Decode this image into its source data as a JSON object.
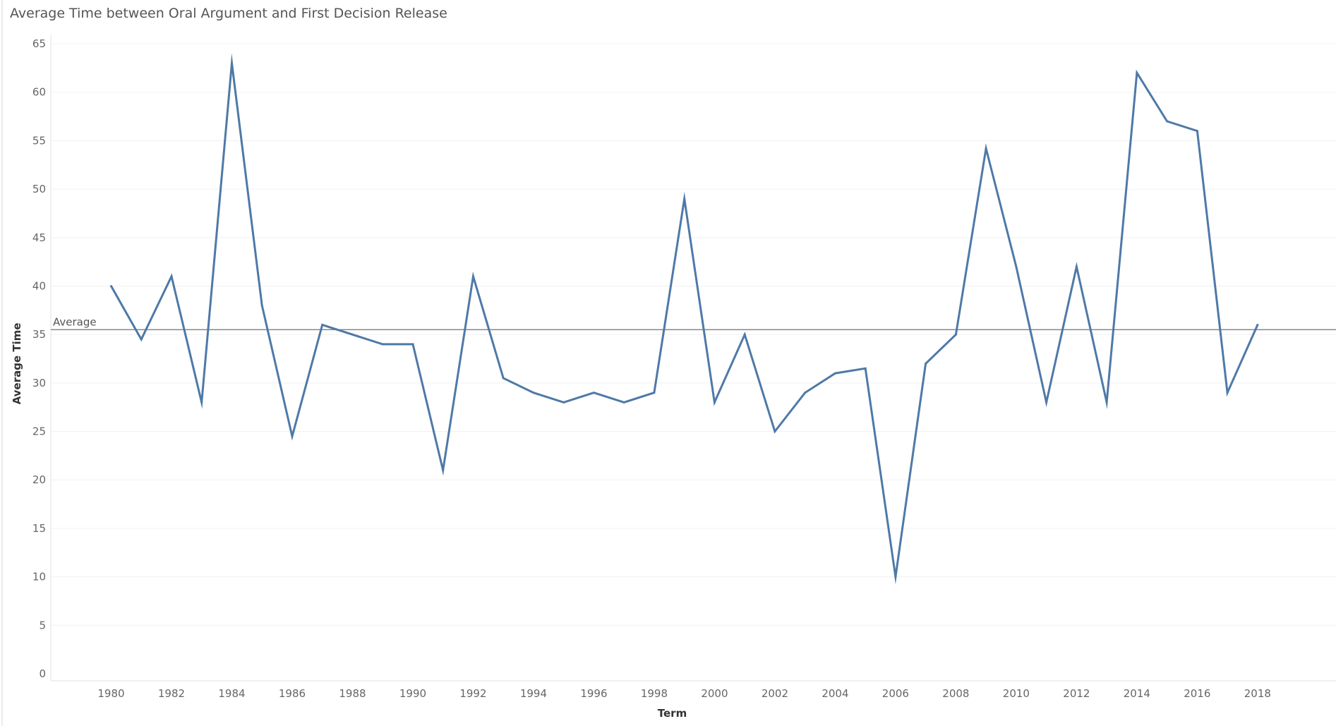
{
  "chart_data": {
    "type": "line",
    "title": "Average Time between Oral Argument and First Decision Release",
    "xlabel": "Term",
    "ylabel": "Average Time",
    "ylim": [
      0,
      65
    ],
    "yticks": [
      0,
      5,
      10,
      15,
      20,
      25,
      30,
      35,
      40,
      45,
      50,
      55,
      60,
      65
    ],
    "xlim": [
      1978,
      2020.6
    ],
    "xticks": [
      1980,
      1982,
      1984,
      1986,
      1988,
      1990,
      1992,
      1994,
      1996,
      1998,
      2000,
      2002,
      2004,
      2006,
      2008,
      2010,
      2012,
      2014,
      2016,
      2018
    ],
    "grid": true,
    "legend": "none",
    "series": [
      {
        "color": "#4e79a7",
        "x": [
          1980,
          1981,
          1982,
          1983,
          1984,
          1985,
          1986,
          1987,
          1988,
          1989,
          1990,
          1991,
          1992,
          1993,
          1994,
          1995,
          1996,
          1997,
          1998,
          1999,
          2000,
          2001,
          2002,
          2003,
          2004,
          2005,
          2006,
          2007,
          2008,
          2009,
          2010,
          2011,
          2012,
          2013,
          2014,
          2015,
          2016,
          2017,
          2018
        ],
        "values": [
          40,
          34.5,
          41,
          28,
          63,
          38,
          24.5,
          36,
          35,
          34,
          34,
          21,
          41,
          30.5,
          29,
          28,
          29,
          28,
          29,
          49,
          28,
          35,
          25,
          29,
          31,
          31.5,
          10,
          32,
          35,
          54.2,
          42,
          28,
          42,
          28,
          62,
          57,
          56,
          29,
          36
        ]
      }
    ],
    "reference_line": {
      "label": "Average",
      "value": 35.5,
      "color": "#888888"
    }
  }
}
